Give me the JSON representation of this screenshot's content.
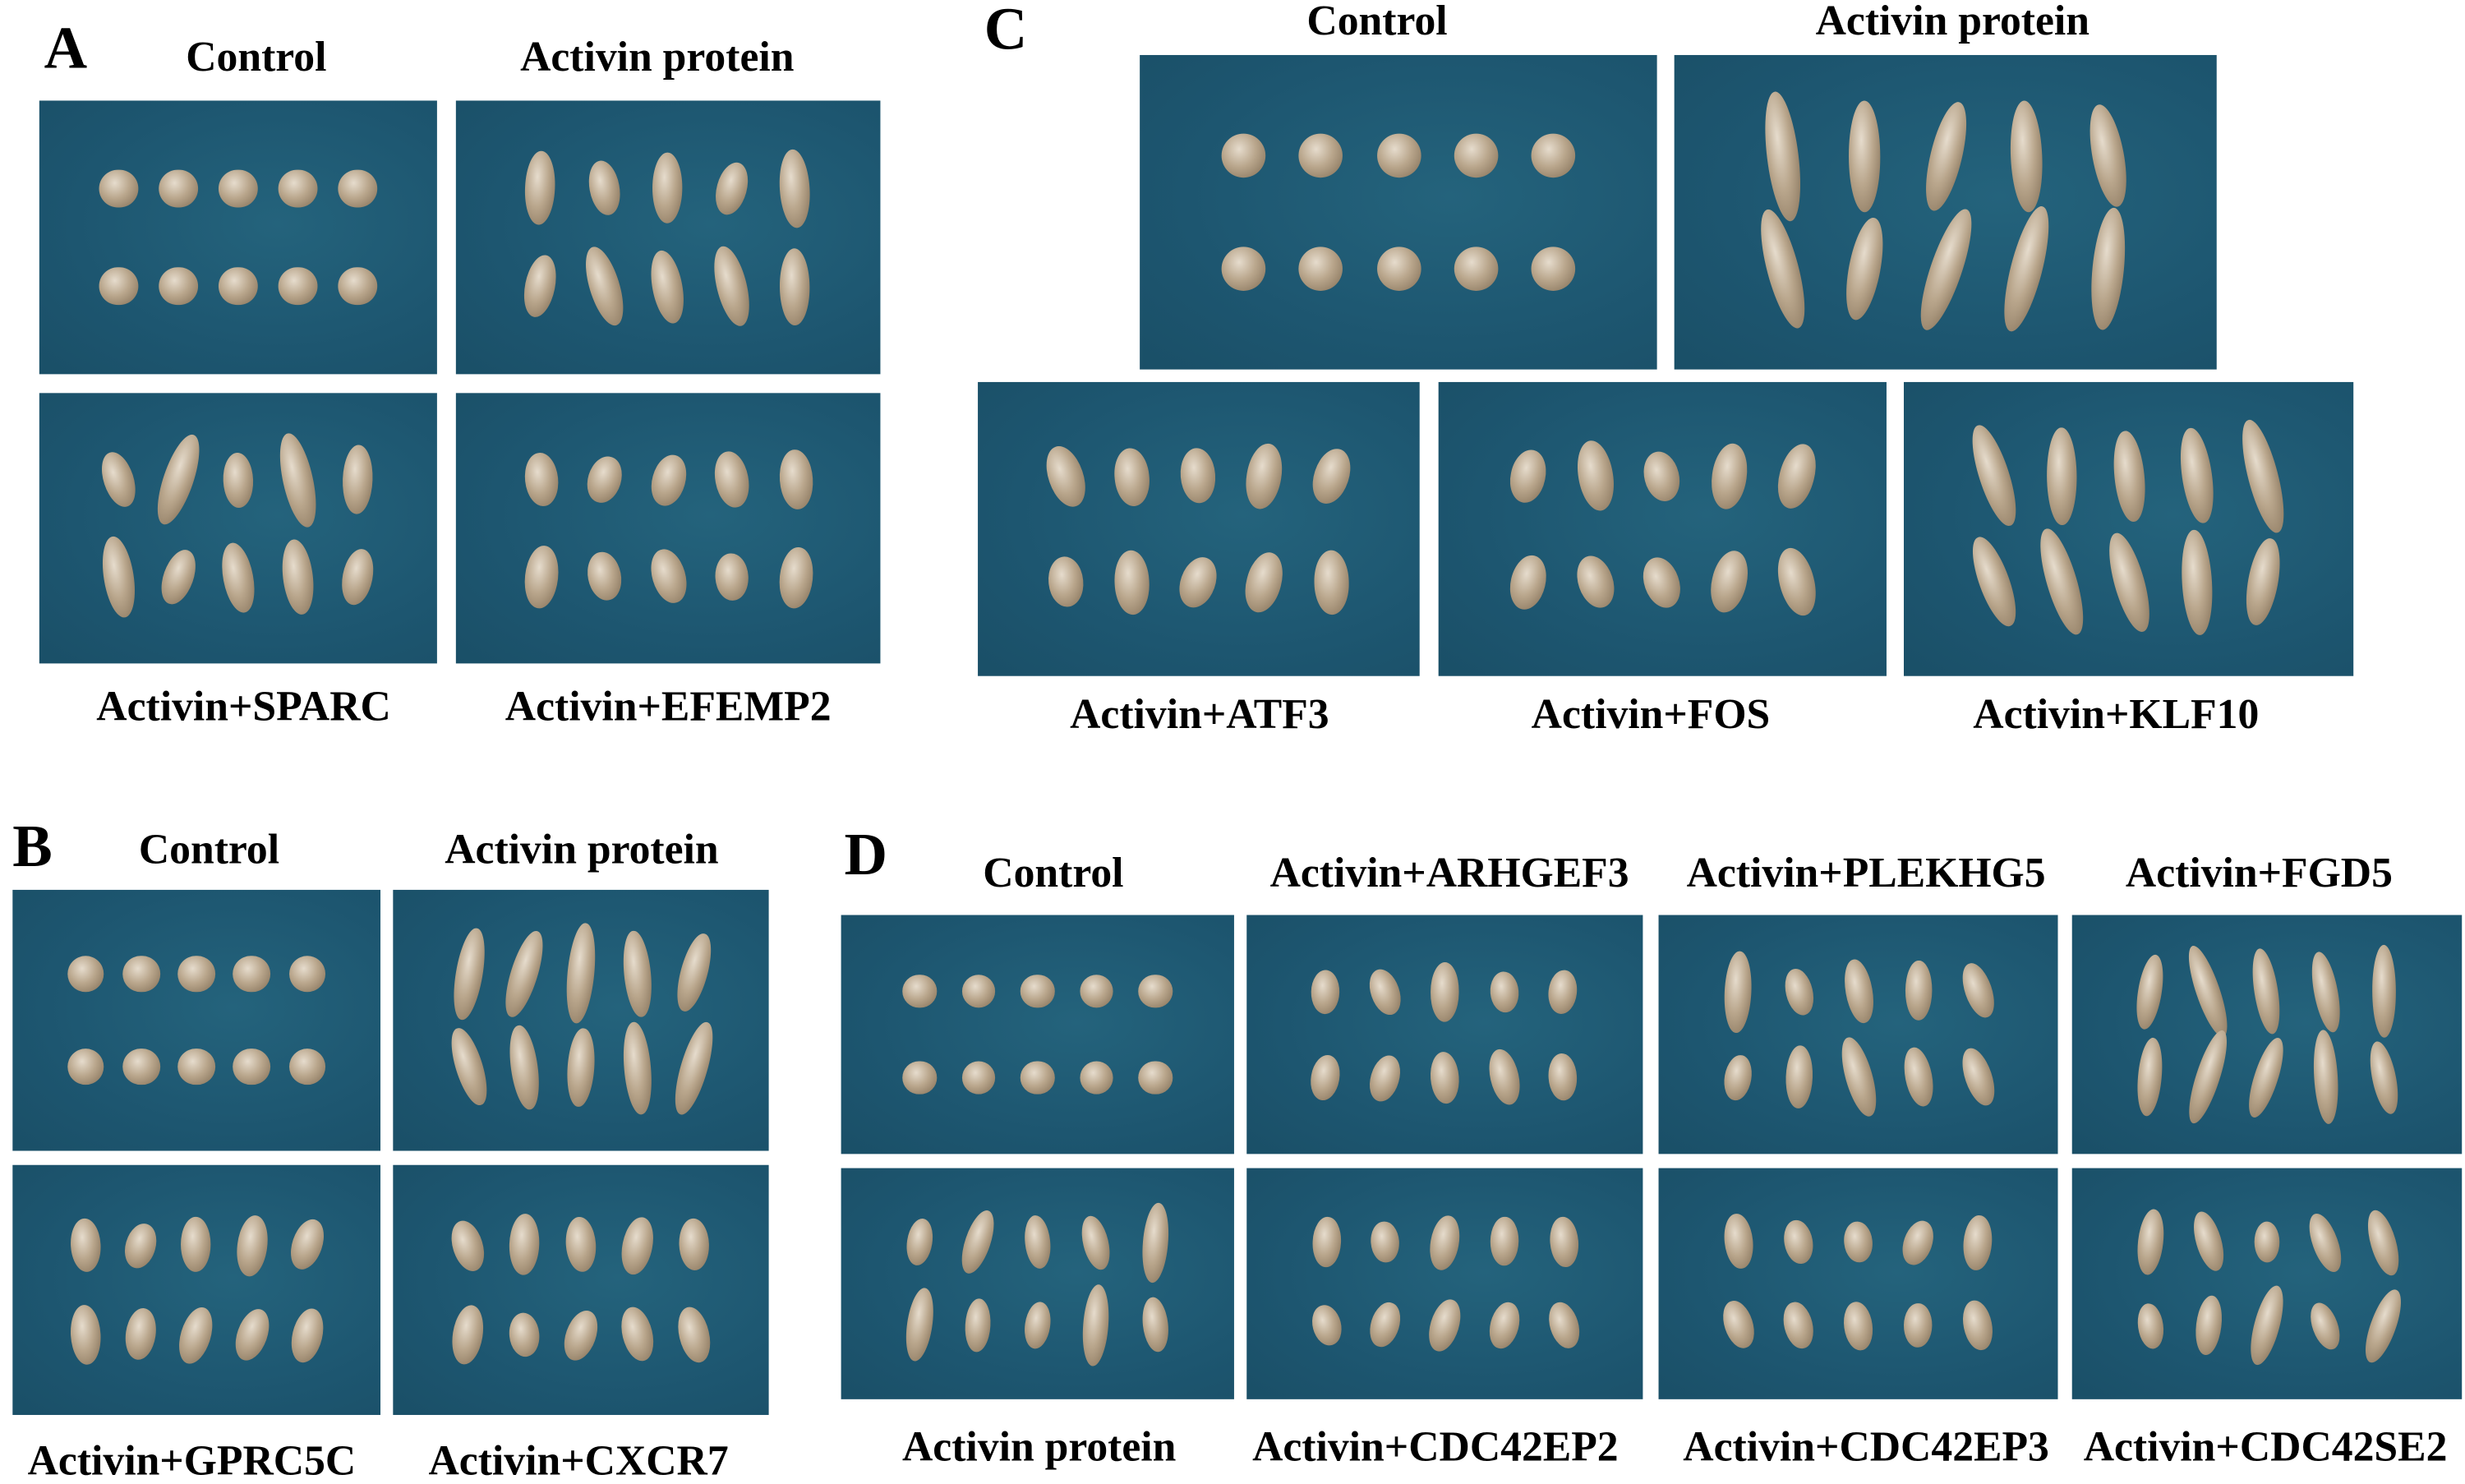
{
  "figure": {
    "A": {
      "letter": "A",
      "titles": [
        "Control",
        "Activin protein"
      ],
      "labels": [
        "Activin+SPARC",
        "Activin+EFEMP2"
      ]
    },
    "B": {
      "letter": "B",
      "titles": [
        "Control",
        "Activin protein"
      ],
      "labels": [
        "Activin+GPRC5C",
        "Activin+CXCR7"
      ]
    },
    "C": {
      "letter": "C",
      "titles": [
        "Control",
        "Activin protein"
      ],
      "labels": [
        "Activin+ATF3",
        "Activin+FOS",
        "Activin+KLF10"
      ]
    },
    "D": {
      "letter": "D",
      "titles": [
        "Control",
        "Activin+ARHGEF3",
        "Activin+PLEKHG5",
        "Activin+FGD5"
      ],
      "labels": [
        "Activin protein",
        "Activin+CDC42EP2",
        "Activin+CDC42EP3",
        "Activin+CDC42SE2"
      ]
    }
  },
  "colors": {
    "background": "#1d5670",
    "embryo": "#b9a68c"
  }
}
